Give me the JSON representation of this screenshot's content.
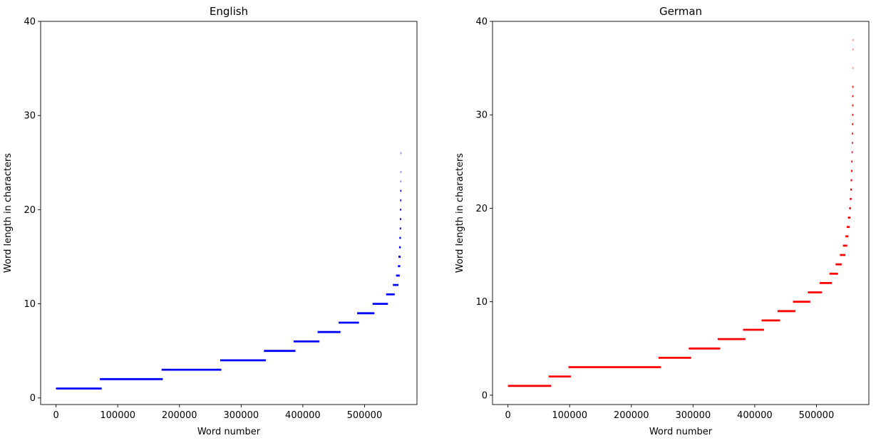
{
  "chart_data": [
    {
      "type": "scatter",
      "title": "English",
      "xlabel": "Word number",
      "ylabel": "Word length in characters",
      "xlim": [
        -25000,
        585000
      ],
      "ylim": [
        -0.7,
        40
      ],
      "xticks": [
        0,
        100000,
        200000,
        300000,
        400000,
        500000
      ],
      "yticks": [
        0,
        10,
        20,
        30,
        40
      ],
      "grid": false,
      "color": "#0000ff",
      "segments": [
        {
          "length": 1,
          "x": [
            0,
            74000
          ]
        },
        {
          "length": 2,
          "x": [
            71000,
            173000
          ]
        },
        {
          "length": 3,
          "x": [
            171000,
            268000
          ]
        },
        {
          "length": 4,
          "x": [
            266000,
            340000
          ]
        },
        {
          "length": 5,
          "x": [
            337000,
            388000
          ]
        },
        {
          "length": 6,
          "x": [
            385000,
            427000
          ]
        },
        {
          "length": 7,
          "x": [
            424000,
            461000
          ]
        },
        {
          "length": 8,
          "x": [
            458000,
            491000
          ]
        },
        {
          "length": 9,
          "x": [
            488000,
            516000
          ]
        },
        {
          "length": 10,
          "x": [
            513000,
            538000
          ]
        },
        {
          "length": 11,
          "x": [
            535000,
            549000
          ]
        },
        {
          "length": 12,
          "x": [
            546000,
            555000
          ]
        },
        {
          "length": 13,
          "x": [
            551000,
            557000
          ]
        },
        {
          "length": 14,
          "x": [
            554000,
            558000
          ]
        },
        {
          "length": 15,
          "x": [
            555000,
            558500
          ]
        },
        {
          "length": 16,
          "x": [
            556000,
            558800
          ]
        },
        {
          "length": 17,
          "x": [
            556500,
            559000
          ]
        },
        {
          "length": 18,
          "x": [
            557000,
            559200
          ]
        },
        {
          "length": 19,
          "x": [
            557300,
            559300
          ]
        },
        {
          "length": 20,
          "x": [
            557500,
            559400
          ]
        },
        {
          "length": 21,
          "x": [
            557700,
            559400
          ]
        },
        {
          "length": 22,
          "x": [
            557800,
            559500
          ]
        },
        {
          "length": 23,
          "x": [
            557900,
            559500
          ]
        },
        {
          "length": 24,
          "x": [
            558000,
            559500
          ]
        },
        {
          "length": 26,
          "x": [
            558100,
            559600
          ]
        }
      ]
    },
    {
      "type": "scatter",
      "title": "German",
      "xlabel": "Word number",
      "ylabel": "Word length in characters",
      "xlim": [
        -25000,
        585000
      ],
      "ylim": [
        -1,
        40
      ],
      "xticks": [
        0,
        100000,
        200000,
        300000,
        400000,
        500000
      ],
      "yticks": [
        0,
        10,
        20,
        30,
        40
      ],
      "grid": false,
      "color": "#ff0000",
      "segments": [
        {
          "length": 1,
          "x": [
            0,
            70000
          ]
        },
        {
          "length": 2,
          "x": [
            66000,
            102000
          ]
        },
        {
          "length": 3,
          "x": [
            98000,
            248000
          ]
        },
        {
          "length": 4,
          "x": [
            244000,
            297000
          ]
        },
        {
          "length": 5,
          "x": [
            293000,
            344000
          ]
        },
        {
          "length": 6,
          "x": [
            340000,
            385000
          ]
        },
        {
          "length": 7,
          "x": [
            381000,
            415000
          ]
        },
        {
          "length": 8,
          "x": [
            411000,
            441000
          ]
        },
        {
          "length": 9,
          "x": [
            437000,
            466000
          ]
        },
        {
          "length": 10,
          "x": [
            462000,
            490000
          ]
        },
        {
          "length": 11,
          "x": [
            486000,
            509000
          ]
        },
        {
          "length": 12,
          "x": [
            505000,
            525000
          ]
        },
        {
          "length": 13,
          "x": [
            521000,
            535000
          ]
        },
        {
          "length": 14,
          "x": [
            531000,
            541000
          ]
        },
        {
          "length": 15,
          "x": [
            538000,
            547000
          ]
        },
        {
          "length": 16,
          "x": [
            543000,
            550000
          ]
        },
        {
          "length": 17,
          "x": [
            547000,
            552000
          ]
        },
        {
          "length": 18,
          "x": [
            549000,
            554000
          ]
        },
        {
          "length": 19,
          "x": [
            551000,
            555000
          ]
        },
        {
          "length": 20,
          "x": [
            553000,
            556000
          ]
        },
        {
          "length": 21,
          "x": [
            554000,
            557000
          ]
        },
        {
          "length": 22,
          "x": [
            555000,
            557500
          ]
        },
        {
          "length": 23,
          "x": [
            555500,
            558000
          ]
        },
        {
          "length": 24,
          "x": [
            556000,
            558300
          ]
        },
        {
          "length": 25,
          "x": [
            556500,
            558500
          ]
        },
        {
          "length": 26,
          "x": [
            557000,
            558700
          ]
        },
        {
          "length": 27,
          "x": [
            557300,
            558800
          ]
        },
        {
          "length": 28,
          "x": [
            557500,
            558900
          ]
        },
        {
          "length": 29,
          "x": [
            557700,
            559000
          ]
        },
        {
          "length": 30,
          "x": [
            557800,
            559100
          ]
        },
        {
          "length": 31,
          "x": [
            557900,
            559200
          ]
        },
        {
          "length": 32,
          "x": [
            558000,
            559200
          ]
        },
        {
          "length": 33,
          "x": [
            558100,
            559300
          ]
        },
        {
          "length": 35,
          "x": [
            558200,
            559300
          ]
        },
        {
          "length": 37,
          "x": [
            558300,
            559400
          ]
        },
        {
          "length": 38,
          "x": [
            558400,
            559400
          ]
        }
      ]
    }
  ]
}
